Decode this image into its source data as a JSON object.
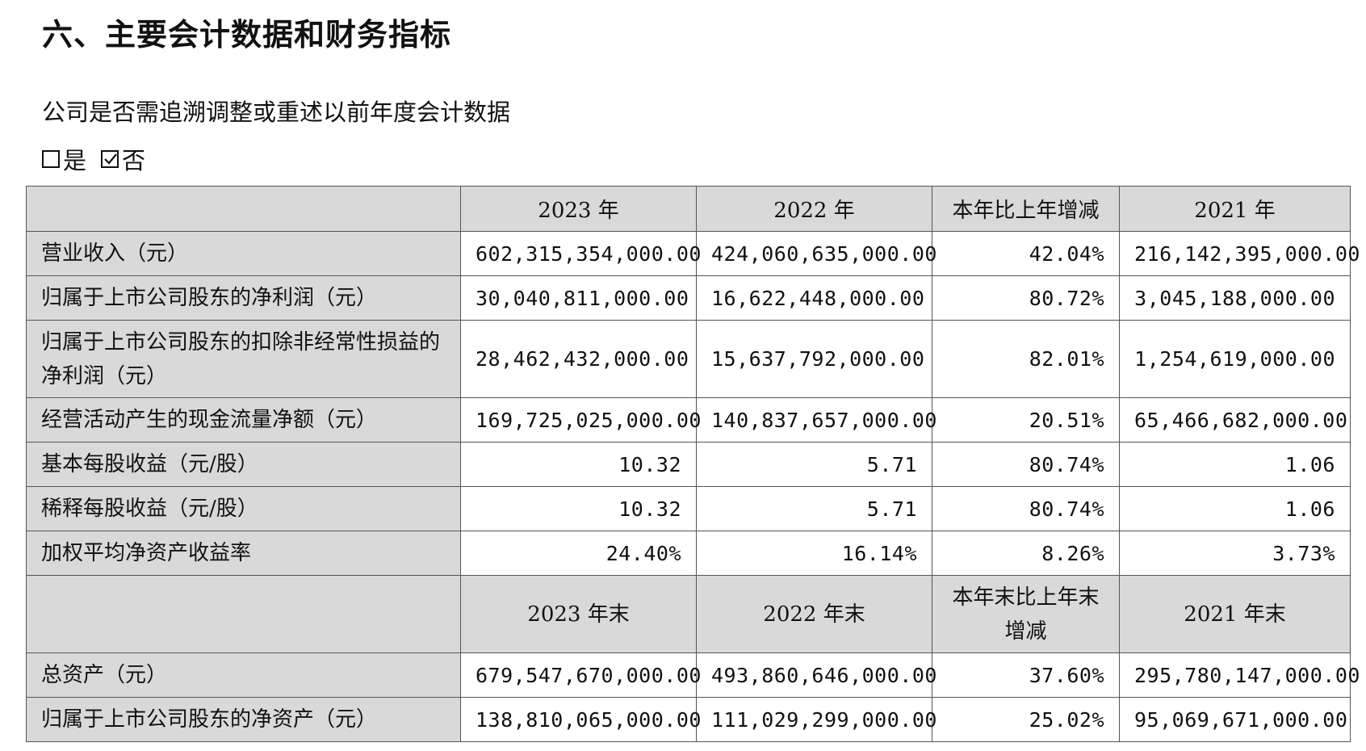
{
  "heading": "六、主要会计数据和财务指标",
  "question": "公司是否需追溯调整或重述以前年度会计数据",
  "options": [
    {
      "label": "是",
      "checked": false,
      "icon": "empty-checkbox-icon"
    },
    {
      "label": "否",
      "checked": true,
      "icon": "checked-checkbox-icon"
    }
  ],
  "table": {
    "header1": [
      "",
      "2023 年",
      "2022 年",
      "本年比上年增减",
      "2021 年"
    ],
    "rows1": [
      {
        "label": "营业收入（元）",
        "values": [
          "602,315,354,000.00",
          "424,060,635,000.00",
          "42.04%",
          "216,142,395,000.00"
        ]
      },
      {
        "label": "归属于上市公司股东的净利润（元）",
        "values": [
          "30,040,811,000.00",
          "16,622,448,000.00",
          "80.72%",
          "3,045,188,000.00"
        ]
      },
      {
        "label": "归属于上市公司股东的扣除非经常性损益的净利润（元）",
        "values": [
          "28,462,432,000.00",
          "15,637,792,000.00",
          "82.01%",
          "1,254,619,000.00"
        ]
      },
      {
        "label": "经营活动产生的现金流量净额（元）",
        "values": [
          "169,725,025,000.00",
          "140,837,657,000.00",
          "20.51%",
          "65,466,682,000.00"
        ]
      },
      {
        "label": "基本每股收益（元/股）",
        "values": [
          "10.32",
          "5.71",
          "80.74%",
          "1.06"
        ]
      },
      {
        "label": "稀释每股收益（元/股）",
        "values": [
          "10.32",
          "5.71",
          "80.74%",
          "1.06"
        ]
      },
      {
        "label": "加权平均净资产收益率",
        "values": [
          "24.40%",
          "16.14%",
          "8.26%",
          "3.73%"
        ]
      }
    ],
    "header2": [
      "",
      "2023 年末",
      "2022 年末",
      "本年末比上年末增减",
      "2021 年末"
    ],
    "rows2": [
      {
        "label": "总资产（元）",
        "values": [
          "679,547,670,000.00",
          "493,860,646,000.00",
          "37.60%",
          "295,780,147,000.00"
        ]
      },
      {
        "label": "归属于上市公司股东的净资产（元）",
        "values": [
          "138,810,065,000.00",
          "111,029,299,000.00",
          "25.02%",
          "95,069,671,000.00"
        ]
      }
    ]
  }
}
